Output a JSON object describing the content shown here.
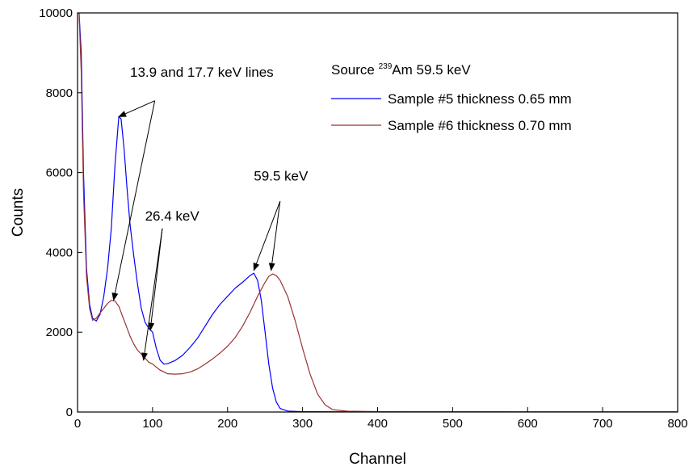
{
  "chart_data": {
    "type": "line",
    "xlabel": "Channel",
    "ylabel": "Counts",
    "xlim": [
      0,
      800
    ],
    "ylim": [
      0,
      10000
    ],
    "x_ticks": [
      0,
      100,
      200,
      300,
      400,
      500,
      600,
      700,
      800
    ],
    "y_ticks": [
      0,
      2000,
      4000,
      6000,
      8000,
      10000
    ],
    "grid": false,
    "legend": {
      "placement": "top-right",
      "header_prefix": "Source ",
      "header_superscript": "239",
      "header_suffix": "Am 59.5 keV"
    },
    "series": [
      {
        "name": "Sample #5 thickness 0.65 mm",
        "color": "#0000ff",
        "points": [
          [
            2,
            10000
          ],
          [
            5,
            9000
          ],
          [
            8,
            6000
          ],
          [
            12,
            3600
          ],
          [
            16,
            2700
          ],
          [
            20,
            2350
          ],
          [
            25,
            2280
          ],
          [
            30,
            2450
          ],
          [
            35,
            2900
          ],
          [
            40,
            3600
          ],
          [
            45,
            4600
          ],
          [
            50,
            6200
          ],
          [
            55,
            7400
          ],
          [
            58,
            7350
          ],
          [
            62,
            6600
          ],
          [
            66,
            5600
          ],
          [
            70,
            4700
          ],
          [
            75,
            3900
          ],
          [
            80,
            3200
          ],
          [
            85,
            2600
          ],
          [
            90,
            2250
          ],
          [
            95,
            2100
          ],
          [
            100,
            2000
          ],
          [
            105,
            1600
          ],
          [
            110,
            1300
          ],
          [
            115,
            1200
          ],
          [
            120,
            1210
          ],
          [
            130,
            1290
          ],
          [
            140,
            1420
          ],
          [
            150,
            1620
          ],
          [
            160,
            1850
          ],
          [
            170,
            2150
          ],
          [
            180,
            2450
          ],
          [
            190,
            2700
          ],
          [
            200,
            2900
          ],
          [
            210,
            3100
          ],
          [
            220,
            3250
          ],
          [
            230,
            3420
          ],
          [
            235,
            3480
          ],
          [
            240,
            3300
          ],
          [
            245,
            2800
          ],
          [
            250,
            2000
          ],
          [
            255,
            1200
          ],
          [
            260,
            600
          ],
          [
            265,
            250
          ],
          [
            270,
            90
          ],
          [
            280,
            25
          ],
          [
            300,
            8
          ],
          [
            400,
            5
          ],
          [
            600,
            5
          ],
          [
            800,
            3
          ]
        ]
      },
      {
        "name": "Sample #6 thickness 0.70 mm",
        "color": "#993333",
        "points": [
          [
            2,
            10000
          ],
          [
            5,
            8500
          ],
          [
            8,
            5500
          ],
          [
            12,
            3400
          ],
          [
            16,
            2600
          ],
          [
            20,
            2300
          ],
          [
            25,
            2350
          ],
          [
            30,
            2480
          ],
          [
            35,
            2600
          ],
          [
            40,
            2720
          ],
          [
            45,
            2800
          ],
          [
            50,
            2780
          ],
          [
            55,
            2650
          ],
          [
            60,
            2400
          ],
          [
            65,
            2150
          ],
          [
            70,
            1900
          ],
          [
            75,
            1700
          ],
          [
            80,
            1550
          ],
          [
            85,
            1450
          ],
          [
            90,
            1350
          ],
          [
            95,
            1250
          ],
          [
            100,
            1200
          ],
          [
            110,
            1050
          ],
          [
            120,
            960
          ],
          [
            130,
            950
          ],
          [
            140,
            960
          ],
          [
            150,
            1000
          ],
          [
            160,
            1080
          ],
          [
            170,
            1200
          ],
          [
            180,
            1330
          ],
          [
            190,
            1480
          ],
          [
            200,
            1650
          ],
          [
            210,
            1860
          ],
          [
            220,
            2150
          ],
          [
            230,
            2500
          ],
          [
            240,
            2900
          ],
          [
            250,
            3250
          ],
          [
            255,
            3400
          ],
          [
            260,
            3460
          ],
          [
            265,
            3420
          ],
          [
            270,
            3300
          ],
          [
            280,
            2900
          ],
          [
            290,
            2300
          ],
          [
            300,
            1600
          ],
          [
            310,
            950
          ],
          [
            320,
            450
          ],
          [
            330,
            180
          ],
          [
            340,
            60
          ],
          [
            360,
            20
          ],
          [
            400,
            10
          ],
          [
            600,
            5
          ],
          [
            800,
            3
          ]
        ]
      }
    ],
    "annotations": [
      {
        "text": "13.9 and 17.7 keV lines",
        "label_at": [
          70,
          8400
        ],
        "arrows": [
          {
            "from": [
              103,
              7800
            ],
            "to": [
              55,
              7400
            ]
          },
          {
            "from": [
              103,
              7800
            ],
            "to": [
              48,
              2800
            ]
          }
        ]
      },
      {
        "text": "26.4 keV",
        "label_at": [
          90,
          4800
        ],
        "arrows": [
          {
            "from": [
              113,
              4600
            ],
            "to": [
              97,
              2050
            ]
          },
          {
            "from": [
              113,
              4600
            ],
            "to": [
              88,
              1300
            ]
          }
        ]
      },
      {
        "text": "59.5 keV",
        "label_at": [
          235,
          5800
        ],
        "arrows": [
          {
            "from": [
              270,
              5280
            ],
            "to": [
              235,
              3550
            ]
          },
          {
            "from": [
              270,
              5280
            ],
            "to": [
              258,
              3550
            ]
          }
        ]
      }
    ]
  }
}
